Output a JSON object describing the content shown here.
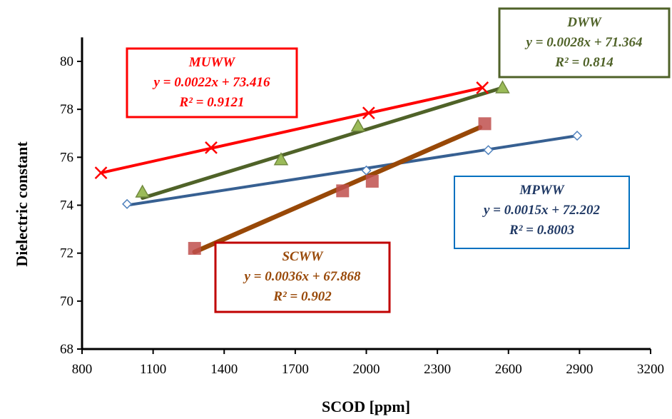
{
  "chart_data": {
    "type": "scatter",
    "xlabel": "SCOD [ppm]",
    "ylabel": "Dielectric constant",
    "xlim": [
      800,
      3200
    ],
    "ylim": [
      68,
      81
    ],
    "xticks": [
      800,
      1100,
      1400,
      1700,
      2000,
      2300,
      2600,
      2900,
      3200
    ],
    "yticks": [
      68,
      70,
      72,
      74,
      76,
      78,
      80
    ],
    "grid": false,
    "series": [
      {
        "name": "MUWW",
        "color": "#ff0000",
        "marker": "x",
        "points": [
          [
            880,
            75.35
          ],
          [
            1345,
            76.4
          ],
          [
            2010,
            77.85
          ],
          [
            2490,
            78.9
          ]
        ],
        "trendline": [
          [
            880,
            75.35
          ],
          [
            2490,
            78.9
          ]
        ],
        "equation": "y = 0.0022x + 73.416",
        "r2": "R² =  0.9121"
      },
      {
        "name": "DWW",
        "color": "#4f6228",
        "marker": "triangle",
        "points": [
          [
            1055,
            74.55
          ],
          [
            1640,
            75.9
          ],
          [
            1965,
            77.3
          ],
          [
            2575,
            78.9
          ]
        ],
        "trendline": [
          [
            1055,
            74.3
          ],
          [
            2575,
            78.9
          ]
        ],
        "equation": "y = 0.0028x + 71.364",
        "r2": "R² = 0.814"
      },
      {
        "name": "MPWW",
        "color": "#376092",
        "marker": "diamond",
        "points": [
          [
            990,
            74.05
          ],
          [
            2000,
            75.45
          ],
          [
            2515,
            76.3
          ],
          [
            2890,
            76.9
          ]
        ],
        "trendline": [
          [
            990,
            74.0
          ],
          [
            2890,
            76.9
          ]
        ],
        "equation": "y = 0.0015x + 72.202",
        "r2": "R² = 0.8003"
      },
      {
        "name": "SCWW",
        "color": "#984807",
        "marker": "square",
        "points": [
          [
            1275,
            72.2
          ],
          [
            1900,
            74.6
          ],
          [
            2025,
            75.0
          ],
          [
            2500,
            77.4
          ]
        ],
        "trendline": [
          [
            1275,
            72.05
          ],
          [
            2480,
            77.25
          ]
        ],
        "equation": "y = 0.0036x + 67.868",
        "r2": "R² = 0.902"
      }
    ]
  },
  "annotation_colors": {
    "MUWW": {
      "border": "#ff0000",
      "text": "#ff0000"
    },
    "DWW": {
      "border": "#4f6228",
      "text": "#4f6228"
    },
    "MPWW": {
      "border": "#0070c0",
      "text": "#1f3864"
    },
    "SCWW": {
      "border": "#c00000",
      "text": "#984807"
    }
  }
}
